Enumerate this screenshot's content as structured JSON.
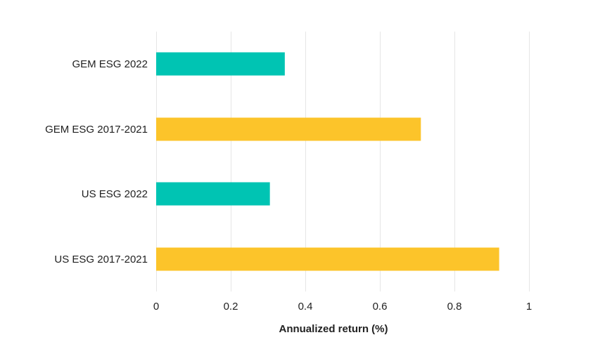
{
  "chart_data": {
    "type": "bar",
    "orientation": "horizontal",
    "categories": [
      "GEM ESG 2022",
      "GEM ESG 2017-2021",
      "US ESG 2022",
      "US ESG 2017-2021"
    ],
    "values": [
      0.345,
      0.71,
      0.305,
      0.92
    ],
    "bar_colors": [
      "#00c4b3",
      "#fcc42a",
      "#00c4b3",
      "#fcc42a"
    ],
    "xlabel": "Annualized return (%)",
    "ylabel": "",
    "xlim": [
      0,
      1
    ],
    "xticks": [
      0,
      0.2,
      0.4,
      0.6,
      0.8,
      1
    ],
    "xtick_labels": [
      "0",
      "0.2",
      "0.4",
      "0.6",
      "0.8",
      "1"
    ],
    "grid": "vertical",
    "legend": "none"
  }
}
